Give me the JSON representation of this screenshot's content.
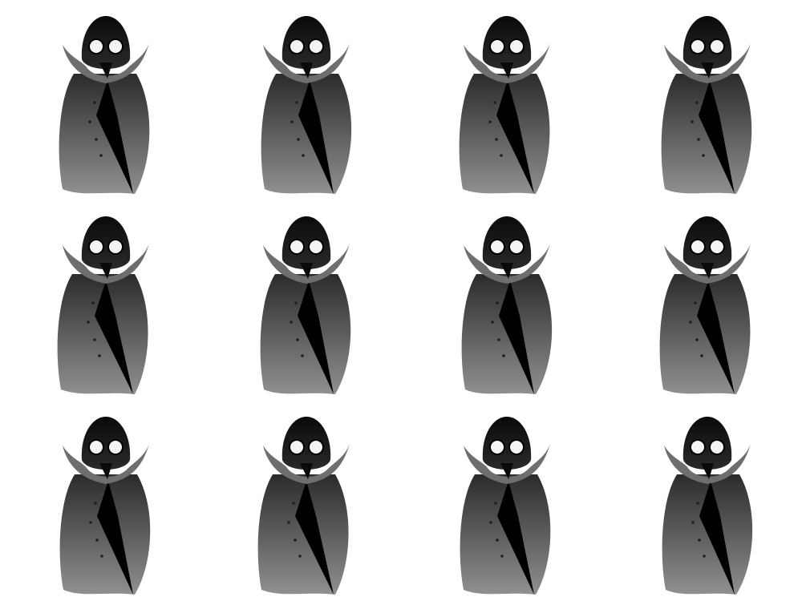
{
  "sprite_sheet": {
    "rows": 3,
    "columns": 4,
    "background": "#ffffff",
    "colors": {
      "head": "#0a0a0a",
      "eye": "#f4f4f4",
      "collar": "#6e6e6e",
      "cloak_top": "#2b2b2b",
      "cloak_bottom": "#909090",
      "stripe": "#000000",
      "button": "#1f1f1f"
    },
    "frames": [
      {
        "row": 1,
        "col": 1
      },
      {
        "row": 1,
        "col": 2
      },
      {
        "row": 1,
        "col": 3
      },
      {
        "row": 1,
        "col": 4
      },
      {
        "row": 2,
        "col": 1
      },
      {
        "row": 2,
        "col": 2
      },
      {
        "row": 2,
        "col": 3
      },
      {
        "row": 2,
        "col": 4
      },
      {
        "row": 3,
        "col": 1
      },
      {
        "row": 3,
        "col": 2
      },
      {
        "row": 3,
        "col": 3
      },
      {
        "row": 3,
        "col": 4
      }
    ]
  }
}
